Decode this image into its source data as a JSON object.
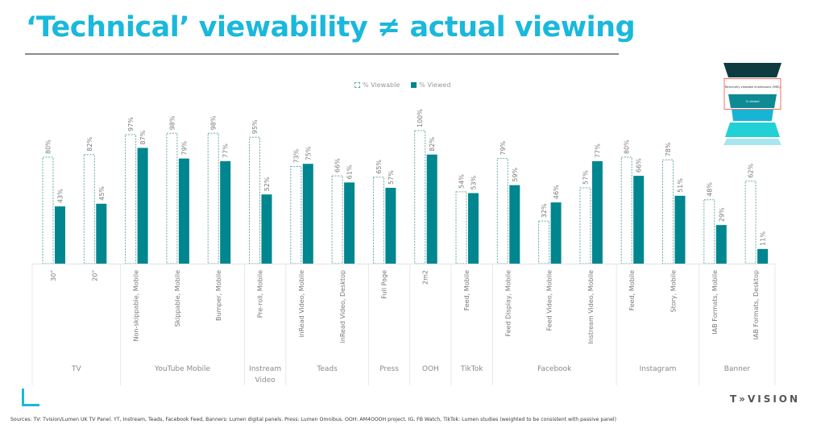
{
  "header": {
    "title": "‘Technical’ viewability ≠ actual viewing"
  },
  "legend": {
    "viewable_label": "% Viewable",
    "viewed_label": "% Viewed"
  },
  "funnel": {
    "highlight_color": "#e5756f",
    "tiers": [
      {
        "color": "#0d3b40"
      },
      {
        "color": "#ffffff",
        "label": "Technically viewable impressions (MRC)"
      },
      {
        "color": "#0e8a95",
        "label": "% viewed"
      },
      {
        "color": "#18b4d6"
      },
      {
        "color": "#22d1d6"
      },
      {
        "color": "#a7e6ee"
      }
    ]
  },
  "colors": {
    "title": "#1ab8dc",
    "viewed": "#00868f",
    "viewable_border": "#6aa9a9",
    "label_text": "#7a7a7a"
  },
  "chart_data": {
    "type": "bar",
    "title": "‘Technical’ viewability ≠ actual viewing",
    "xlabel": "",
    "ylabel": "",
    "ylim": [
      0,
      100
    ],
    "grid": false,
    "legend_position": "top-center",
    "categories": [
      "30\"",
      "20\"",
      "Non-skippable, Mobile",
      "Skippable, Mobile",
      "Bumper, Mobile",
      "Pre-roll, Mobile",
      "inRead Video, Mobile",
      "inRead Video, Desktop",
      "Full Page",
      "2m2",
      "Feed, Mobile",
      "Feed Display, Mobile",
      "Feed Video, Mobile",
      "Instream Video, Mobile",
      "Feed, Mobile",
      "Story, Mobile",
      "IAB Formats, Mobile",
      "IAB Formats, Desktop"
    ],
    "groups": [
      {
        "label": "TV",
        "count": 2
      },
      {
        "label": "YouTube Mobile",
        "count": 3
      },
      {
        "label": "Instream Video",
        "count": 1
      },
      {
        "label": "Teads",
        "count": 2
      },
      {
        "label": "Press",
        "count": 1
      },
      {
        "label": "OOH",
        "count": 1
      },
      {
        "label": "TikTok",
        "count": 1
      },
      {
        "label": "Facebook",
        "count": 3
      },
      {
        "label": "Instagram",
        "count": 2
      },
      {
        "label": "Banner",
        "count": 2
      }
    ],
    "series": [
      {
        "name": "% Viewable",
        "values": [
          80,
          82,
          97,
          98,
          98,
          95,
          73,
          66,
          65,
          100,
          54,
          79,
          32,
          57,
          80,
          78,
          48,
          62
        ]
      },
      {
        "name": "% Viewed",
        "values": [
          43,
          45,
          87,
          79,
          77,
          52,
          75,
          61,
          57,
          82,
          53,
          59,
          46,
          77,
          66,
          51,
          29,
          11
        ]
      }
    ]
  },
  "footer": {
    "brand": "T»VISION",
    "sources": "Sources: TV: Tvision/Lumen UK TV Panel. YT, Instream, Teads, Facebook Feed, Banners: Lumen digital panels. Press: Lumen Omnibus. OOH: AM4OOOH project. IG, FB Watch, TikTok: Lumen studies (weighted to be consistent with passive panel)"
  }
}
